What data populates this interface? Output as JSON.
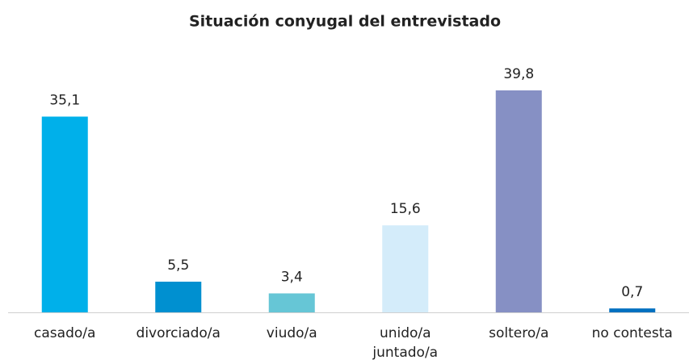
{
  "chart_data": {
    "type": "bar",
    "title": "Situación conyugal del entrevistado",
    "categories": [
      "casado/a",
      "divorciado/a",
      "viudo/a",
      "unido/a juntado/a",
      "soltero/a",
      "no contesta"
    ],
    "values": [
      35.1,
      5.5,
      3.4,
      15.6,
      39.8,
      0.7
    ],
    "value_labels": [
      "35,1",
      "5,5",
      "3,4",
      "15,6",
      "39,8",
      "0,7"
    ],
    "colors": [
      "#00b0ea",
      "#0090d0",
      "#66c6d6",
      "#d4ecfa",
      "#8690c4",
      "#0070c0"
    ]
  }
}
